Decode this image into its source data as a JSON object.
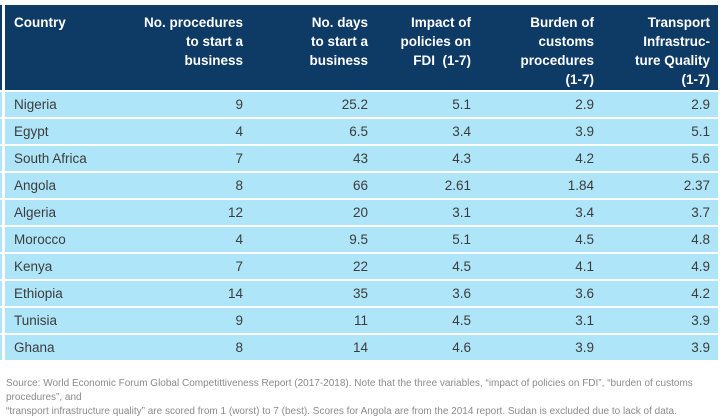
{
  "colors": {
    "header_bg": "#0e3a66",
    "header_text": "#ffffff",
    "row_bg": "#afe5f8",
    "row_text": "#3c3c3c",
    "source_text": "#8b8b8b"
  },
  "chart_data": {
    "type": "table",
    "title": "",
    "columns": [
      "Country",
      "No. procedures\nto start a\nbusiness",
      "No. days\nto start a\nbusiness",
      "Impact of\npolicies on\nFDI  (1-7)",
      "Burden of\ncustoms\nprocedures\n(1-7)",
      "Transport\nInfrastruc-\nture Quality\n(1-7)"
    ],
    "rows": [
      [
        "Nigeria",
        "9",
        "25.2",
        "5.1",
        "2.9",
        "2.9"
      ],
      [
        "Egypt",
        "4",
        "6.5",
        "3.4",
        "3.9",
        "5.1"
      ],
      [
        "South Africa",
        "7",
        "43",
        "4.3",
        "4.2",
        "5.6"
      ],
      [
        "Angola",
        "8",
        "66",
        "2.61",
        "1.84",
        "2.37"
      ],
      [
        "Algeria",
        "12",
        "20",
        "3.1",
        "3.4",
        "3.7"
      ],
      [
        "Morocco",
        "4",
        "9.5",
        "5.1",
        "4.5",
        "4.8"
      ],
      [
        "Kenya",
        "7",
        "22",
        "4.5",
        "4.1",
        "4.9"
      ],
      [
        "Ethiopia",
        "14",
        "35",
        "3.6",
        "3.6",
        "4.2"
      ],
      [
        "Tunisia",
        "9",
        "11",
        "4.5",
        "3.1",
        "3.9"
      ],
      [
        "Ghana",
        "8",
        "14",
        "4.6",
        "3.9",
        "3.9"
      ]
    ]
  },
  "footer": {
    "source_note": "Source: World Economic Forum Global Competittiveness Report (2017-2018). Note that the three variables, “impact of policies on FDI”, “burden of customs procedures”, and\n“transport infrastructure quality” are scored from 1 (worst) to 7 (best). Scores for Angola are from the 2014 report. Sudan is excluded due to lack of data."
  }
}
